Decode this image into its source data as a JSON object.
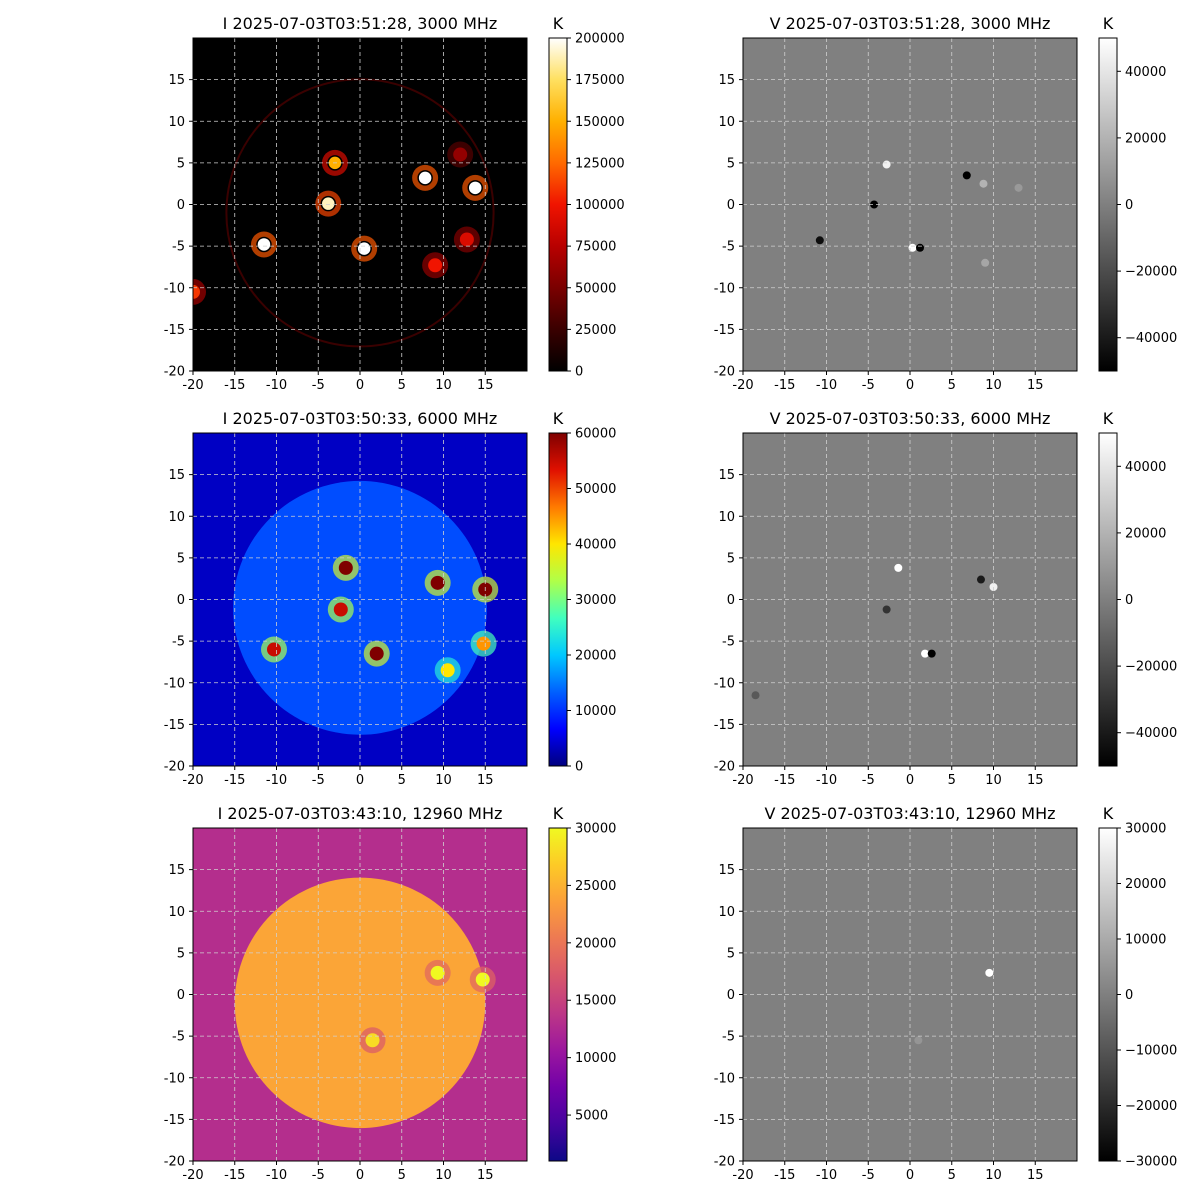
{
  "figure": {
    "panels": [
      {
        "title": "I 2025-07-03T03:51:28, 3000 MHz",
        "unit": "K",
        "colormap": "hot",
        "cbar_ticks": [
          "0",
          "25000",
          "50000",
          "75000",
          "100000",
          "125000",
          "150000",
          "175000",
          "200000"
        ],
        "cbar_range": [
          0,
          200000
        ]
      },
      {
        "title": "V 2025-07-03T03:51:28, 3000 MHz",
        "unit": "K",
        "colormap": "gray",
        "cbar_ticks": [
          "−40000",
          "−20000",
          "0",
          "20000",
          "40000"
        ],
        "cbar_range": [
          -50000,
          50000
        ]
      },
      {
        "title": "I 2025-07-03T03:50:33, 6000 MHz",
        "unit": "K",
        "colormap": "jet",
        "cbar_ticks": [
          "0",
          "10000",
          "20000",
          "30000",
          "40000",
          "50000",
          "60000"
        ],
        "cbar_range": [
          0,
          60000
        ]
      },
      {
        "title": "V 2025-07-03T03:50:33, 6000 MHz",
        "unit": "K",
        "colormap": "gray",
        "cbar_ticks": [
          "−40000",
          "−20000",
          "0",
          "20000",
          "40000"
        ],
        "cbar_range": [
          -50000,
          50000
        ]
      },
      {
        "title": "I 2025-07-03T03:43:10, 12960 MHz",
        "unit": "K",
        "colormap": "plasma",
        "cbar_ticks": [
          "5000",
          "10000",
          "15000",
          "20000",
          "25000",
          "30000"
        ],
        "cbar_range": [
          1000,
          30000
        ]
      },
      {
        "title": "V 2025-07-03T03:43:10, 12960 MHz",
        "unit": "K",
        "colormap": "gray",
        "cbar_ticks": [
          "−30000",
          "−20000",
          "−10000",
          "0",
          "10000",
          "20000",
          "30000"
        ],
        "cbar_range": [
          -30000,
          30000
        ]
      }
    ],
    "x_ticks": [
      "-20",
      "-15",
      "-10",
      "-5",
      "0",
      "5",
      "10",
      "15"
    ],
    "y_ticks": [
      "-20",
      "-15",
      "-10",
      "-5",
      "0",
      "5",
      "10",
      "15"
    ]
  },
  "chart_data": [
    {
      "type": "heatmap",
      "title": "I 2025-07-03T03:51:28, 3000 MHz",
      "colorbar_label": "K",
      "colormap": "hot",
      "vrange": [
        0,
        200000
      ],
      "xlim": [
        -20,
        20
      ],
      "ylim": [
        -20,
        20
      ],
      "grid": true,
      "solar_disk_radius": 16,
      "sources": [
        {
          "x": -11.5,
          "y": -4.8,
          "value": 200000
        },
        {
          "x": -3.8,
          "y": 0.1,
          "value": 190000
        },
        {
          "x": -3.0,
          "y": 5.0,
          "value": 150000
        },
        {
          "x": 0.5,
          "y": -5.3,
          "value": 200000
        },
        {
          "x": 7.8,
          "y": 3.2,
          "value": 200000
        },
        {
          "x": 13.8,
          "y": 2.0,
          "value": 200000
        },
        {
          "x": 9.0,
          "y": -7.3,
          "value": 100000
        },
        {
          "x": 12.8,
          "y": -4.2,
          "value": 90000
        },
        {
          "x": -20.0,
          "y": -10.5,
          "value": 110000
        },
        {
          "x": 12.0,
          "y": 6.0,
          "value": 60000
        }
      ]
    },
    {
      "type": "heatmap",
      "title": "V 2025-07-03T03:51:28, 3000 MHz",
      "colorbar_label": "K",
      "colormap": "gray",
      "vrange": [
        -50000,
        50000
      ],
      "xlim": [
        -20,
        20
      ],
      "ylim": [
        -20,
        20
      ],
      "grid": true,
      "sources": [
        {
          "x": -2.8,
          "y": 4.8,
          "value": 45000
        },
        {
          "x": -4.3,
          "y": 0.0,
          "value": -50000
        },
        {
          "x": -10.8,
          "y": -4.3,
          "value": -45000
        },
        {
          "x": 0.3,
          "y": -5.2,
          "value": 50000
        },
        {
          "x": 1.2,
          "y": -5.2,
          "value": -50000
        },
        {
          "x": 6.8,
          "y": 3.5,
          "value": -50000
        },
        {
          "x": 8.8,
          "y": 2.5,
          "value": 20000
        },
        {
          "x": 9.0,
          "y": -7.0,
          "value": 15000
        },
        {
          "x": 13.0,
          "y": 2.0,
          "value": 10000
        }
      ]
    },
    {
      "type": "heatmap",
      "title": "I 2025-07-03T03:50:33, 6000 MHz",
      "colorbar_label": "K",
      "colormap": "jet",
      "vrange": [
        0,
        60000
      ],
      "xlim": [
        -20,
        20
      ],
      "ylim": [
        -20,
        20
      ],
      "grid": true,
      "solar_disk_radius": 15.2,
      "sources": [
        {
          "x": -1.7,
          "y": 3.8,
          "value": 60000
        },
        {
          "x": -2.3,
          "y": -1.2,
          "value": 55000
        },
        {
          "x": 2.0,
          "y": -6.5,
          "value": 60000
        },
        {
          "x": 9.3,
          "y": 2.0,
          "value": 60000
        },
        {
          "x": 15.0,
          "y": 1.2,
          "value": 60000
        },
        {
          "x": -10.3,
          "y": -6.0,
          "value": 55000
        },
        {
          "x": 10.5,
          "y": -8.5,
          "value": 40000
        },
        {
          "x": 14.8,
          "y": -5.3,
          "value": 45000
        }
      ]
    },
    {
      "type": "heatmap",
      "title": "V 2025-07-03T03:50:33, 6000 MHz",
      "colorbar_label": "K",
      "colormap": "gray",
      "vrange": [
        -50000,
        50000
      ],
      "xlim": [
        -20,
        20
      ],
      "ylim": [
        -20,
        20
      ],
      "grid": true,
      "sources": [
        {
          "x": -1.4,
          "y": 3.8,
          "value": 50000
        },
        {
          "x": -2.8,
          "y": -1.2,
          "value": -30000
        },
        {
          "x": 1.8,
          "y": -6.5,
          "value": 50000
        },
        {
          "x": 2.6,
          "y": -6.5,
          "value": -50000
        },
        {
          "x": 8.5,
          "y": 2.4,
          "value": -40000
        },
        {
          "x": 10.0,
          "y": 1.5,
          "value": 45000
        },
        {
          "x": -18.5,
          "y": -11.5,
          "value": -15000
        }
      ]
    },
    {
      "type": "heatmap",
      "title": "I 2025-07-03T03:43:10, 12960 MHz",
      "colorbar_label": "K",
      "colormap": "plasma",
      "vrange": [
        1000,
        30000
      ],
      "xlim": [
        -20,
        20
      ],
      "ylim": [
        -20,
        20
      ],
      "grid": true,
      "solar_disk_radius": 15,
      "sources": [
        {
          "x": 9.3,
          "y": 2.6,
          "value": 30000
        },
        {
          "x": 14.7,
          "y": 1.8,
          "value": 30000
        },
        {
          "x": 1.5,
          "y": -5.5,
          "value": 28000
        }
      ]
    },
    {
      "type": "heatmap",
      "title": "V 2025-07-03T03:43:10, 12960 MHz",
      "colorbar_label": "K",
      "colormap": "gray",
      "vrange": [
        -30000,
        30000
      ],
      "xlim": [
        -20,
        20
      ],
      "ylim": [
        -20,
        20
      ],
      "grid": true,
      "sources": [
        {
          "x": 9.5,
          "y": 2.6,
          "value": 30000
        },
        {
          "x": 1.0,
          "y": -5.5,
          "value": 5000
        }
      ]
    }
  ]
}
